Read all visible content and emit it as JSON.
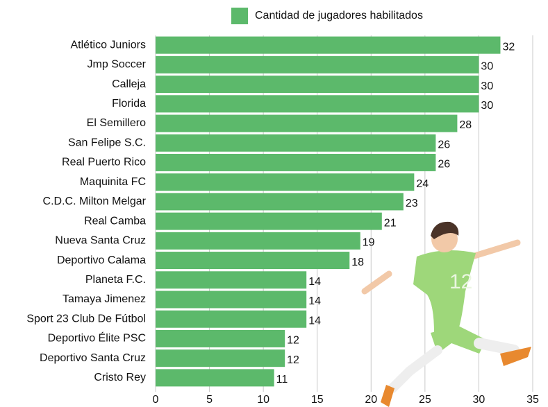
{
  "chart_data": {
    "type": "bar",
    "orientation": "horizontal",
    "categories": [
      "Atlético Juniors",
      "Jmp Soccer",
      "Calleja",
      "Florida",
      "El Semillero",
      "San Felipe S.C.",
      "Real Puerto Rico",
      "Maquinita FC",
      "C.D.C. Milton Melgar",
      "Real Camba",
      "Nueva Santa Cruz",
      "Deportivo Calama",
      "Planeta F.C.",
      "Tamaya Jimenez",
      "Sport 23 Club De Fútbol",
      "Deportivo Élite PSC",
      "Deportivo Santa Cruz",
      "Cristo Rey"
    ],
    "series": [
      {
        "name": "Cantidad de jugadores habilitados",
        "color": "#5cb96b",
        "values": [
          32,
          30,
          30,
          30,
          28,
          26,
          26,
          24,
          23,
          21,
          19,
          18,
          14,
          14,
          14,
          12,
          12,
          11
        ]
      }
    ],
    "xlim": [
      0,
      35
    ],
    "xticks": [
      0,
      5,
      10,
      15,
      20,
      25,
      30,
      35
    ],
    "grid": true,
    "legend": "top"
  }
}
